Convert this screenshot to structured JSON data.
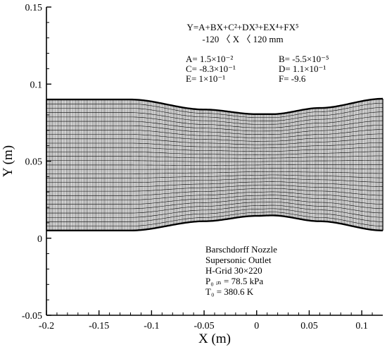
{
  "chart_data": {
    "type": "diagram",
    "xlabel": "X (m)",
    "ylabel": "Y (m)",
    "xlim": [
      -0.2,
      0.12
    ],
    "ylim": [
      -0.05,
      0.15
    ],
    "x_ticks": [
      {
        "v": -0.2,
        "label": "-0.2"
      },
      {
        "v": -0.15,
        "label": "-0.15"
      },
      {
        "v": -0.1,
        "label": "-0.1"
      },
      {
        "v": -0.05,
        "label": "-0.05"
      },
      {
        "v": 0,
        "label": "0"
      },
      {
        "v": 0.05,
        "label": "0.05"
      },
      {
        "v": 0.1,
        "label": "0.1"
      }
    ],
    "y_ticks": [
      {
        "v": -0.05,
        "label": "-0.05"
      },
      {
        "v": 0,
        "label": "0"
      },
      {
        "v": 0.05,
        "label": "0.05"
      },
      {
        "v": 0.1,
        "label": "0.1"
      },
      {
        "v": 0.15,
        "label": "0.15"
      }
    ],
    "equation": {
      "line1": "Y=A+BX+C²+DX³+EX⁴+FX⁵",
      "line2": "-120 〈 X 〈 120 mm"
    },
    "coefficients": [
      {
        "label": "A= 1.5×10⁻²"
      },
      {
        "label": "B= -5.5×10⁻⁵"
      },
      {
        "label": "C= -8.3×10⁻¹"
      },
      {
        "label": "D= 1.1×10⁻¹"
      },
      {
        "label": "E= 1×10⁻¹"
      },
      {
        "label": "F= -9.6"
      }
    ],
    "notes": [
      "Barschdorff Nozzle",
      "Supersonic Outlet",
      "H-Grid 30×220",
      "P₀ ᵢₙ = 78.5 kPa",
      "T₀ = 380.6 K"
    ],
    "nozzle": {
      "inlet_x": -0.12,
      "exit_x": 0.12,
      "x_start": -0.2,
      "lower_wall": [
        [
          -0.2,
          0.005
        ],
        [
          -0.12,
          0.005
        ],
        [
          -0.05,
          0.011
        ],
        [
          0,
          0.0145
        ],
        [
          0.015,
          0.0148
        ],
        [
          0.06,
          0.011
        ],
        [
          0.12,
          0.005
        ]
      ],
      "upper_wall": [
        [
          -0.2,
          0.09
        ],
        [
          -0.12,
          0.09
        ],
        [
          -0.05,
          0.0835
        ],
        [
          0,
          0.0805
        ],
        [
          0.015,
          0.0805
        ],
        [
          0.06,
          0.0845
        ],
        [
          0.12,
          0.0905
        ]
      ],
      "grid_cells_i": 220,
      "grid_cells_j": 30
    }
  }
}
